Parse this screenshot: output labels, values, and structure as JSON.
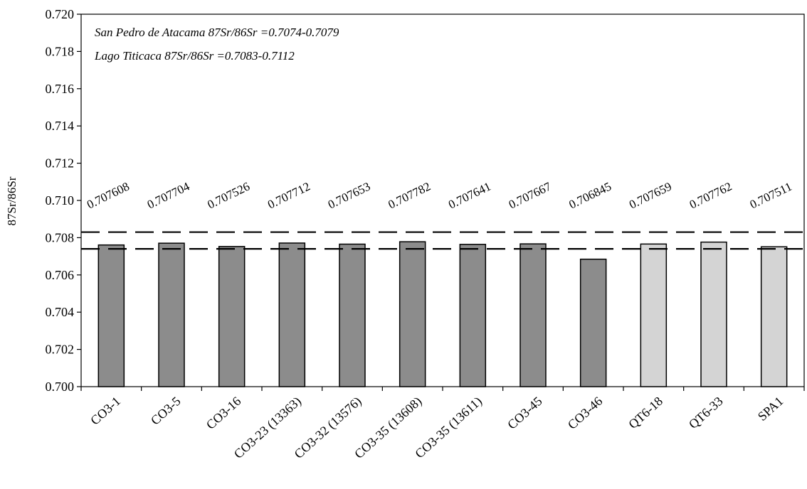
{
  "chart_data": {
    "type": "bar",
    "categories": [
      "CO3-1",
      "CO3-5",
      "CO3-16",
      "CO3-23 (13363)",
      "CO3-32 (13576)",
      "CO3-35 (13608)",
      "CO3-35 (13611)",
      "CO3-45",
      "CO3-46",
      "QT6-18",
      "QT6-33",
      "SPA1"
    ],
    "values": [
      0.707608,
      0.707704,
      0.707526,
      0.707712,
      0.707653,
      0.707782,
      0.707641,
      0.707667,
      0.706845,
      0.707659,
      0.707762,
      0.707511
    ],
    "value_labels": [
      "0.707608",
      "0.707704",
      "0.707526",
      "0.707712",
      "0.707653",
      "0.707782",
      "0.707641",
      "0.707667",
      "0.706845",
      "0.707659",
      "0.707762",
      "0.707511"
    ],
    "bar_colors": [
      "#8c8c8c",
      "#8c8c8c",
      "#8c8c8c",
      "#8c8c8c",
      "#8c8c8c",
      "#8c8c8c",
      "#8c8c8c",
      "#8c8c8c",
      "#8c8c8c",
      "#d4d4d4",
      "#d4d4d4",
      "#d4d4d4"
    ],
    "ylabel": "87Sr/86Sr",
    "xlabel": "",
    "ylim": [
      0.7,
      0.72
    ],
    "yticks": [
      "0.700",
      "0.702",
      "0.704",
      "0.706",
      "0.708",
      "0.710",
      "0.712",
      "0.714",
      "0.716",
      "0.718",
      "0.720"
    ],
    "reference_lines": [
      0.7074,
      0.7083
    ],
    "annotations": [
      "San Pedro de Atacama 87Sr/86Sr =0.7074-0.7079",
      "Lago Titicaca 87Sr/86Sr =0.7083-0.7112"
    ],
    "grid": false
  }
}
